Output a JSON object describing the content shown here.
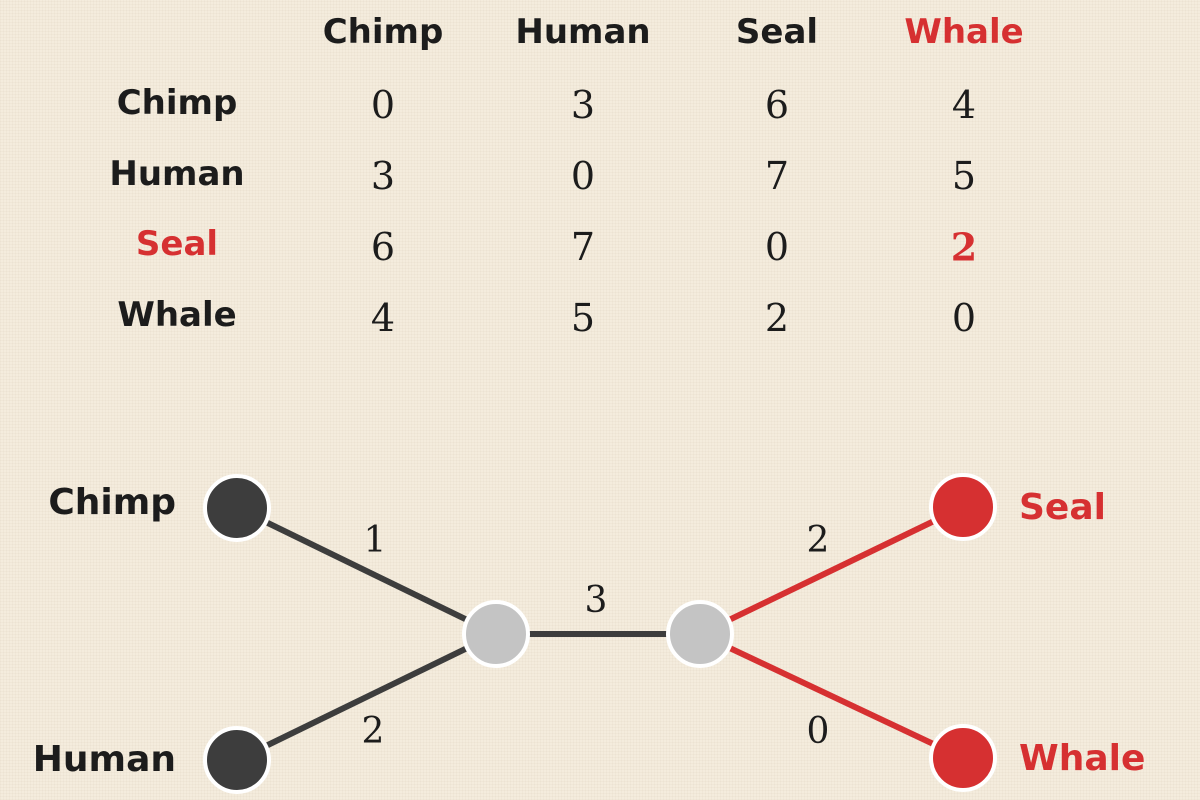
{
  "matrix": {
    "col_headers": [
      "Chimp",
      "Human",
      "Seal",
      "Whale"
    ],
    "row_headers": [
      "Chimp",
      "Human",
      "Seal",
      "Whale"
    ],
    "values": [
      [
        "0",
        "3",
        "6",
        "4"
      ],
      [
        "3",
        "0",
        "7",
        "5"
      ],
      [
        "6",
        "7",
        "0",
        "2"
      ],
      [
        "4",
        "5",
        "2",
        "0"
      ]
    ],
    "highlight": {
      "col_header": "Whale",
      "row_header": "Seal",
      "cell": "Seal-Whale"
    }
  },
  "tree": {
    "leaves": {
      "chimp": "Chimp",
      "human": "Human",
      "seal": "Seal",
      "whale": "Whale"
    },
    "edges": {
      "chimp": "1",
      "human": "2",
      "internal": "3",
      "seal": "2",
      "whale": "0"
    }
  },
  "colors": {
    "text": "#1c1c1c",
    "highlight": "#d63031",
    "leaf_dark": "#3d3d3d",
    "internal_node": "#c4c4c4",
    "edge_dark": "#3d3d3d",
    "background": "#f4ecdd"
  }
}
